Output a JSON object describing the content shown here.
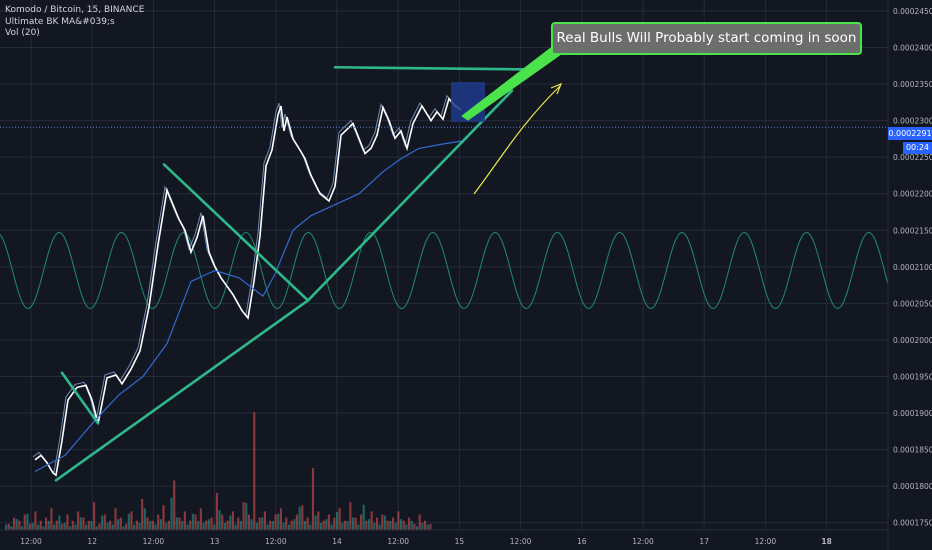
{
  "legend": {
    "symbol": "Komodo / Bitcoin, 15, BINANCE",
    "indicator": "Ultimate BK MA&#039;s",
    "volume": "Vol (20)"
  },
  "annotation": {
    "text": "Real Bulls Will Probably start coming in soon",
    "box_fill": "#6b6e6b",
    "box_border": "#4be34b",
    "arrow_color": "#e8e84a"
  },
  "current_price_label": "0.0002291",
  "countdown_label": "00:24",
  "colors": {
    "background": "#131722",
    "grid": "#262b38",
    "axis_text": "#b2b5be",
    "price_line": "#ffffff",
    "price_line_thin": "#8aa9d9",
    "ma_line": "#2f6bd1",
    "trendline": "#2eb88a",
    "oscillator": "#1e8a73",
    "volume_up": "#26a69a",
    "volume_down": "#ef5350",
    "marker_box": "#1e3a8a"
  },
  "chart_data": {
    "type": "line",
    "title": "Komodo / Bitcoin, 15, BINANCE",
    "ylim": [
      0.000174,
      0.0002465
    ],
    "y_ticks": [
      "0.0002450",
      "0.0002400",
      "0.0002350",
      "0.0002300",
      "0.0002250",
      "0.0002200",
      "0.0002150",
      "0.0002100",
      "0.0002050",
      "0.0002000",
      "0.0001950",
      "0.0001900",
      "0.0001850",
      "0.0001800",
      "0.0001750"
    ],
    "x_ticks": [
      "12:00",
      "12",
      "12:00",
      "13",
      "12:00",
      "14",
      "12:00",
      "15",
      "12:00",
      "16",
      "12:00",
      "17",
      "12:00",
      "18"
    ],
    "current_price": 0.0002291,
    "series": [
      {
        "kind": "price",
        "x": [
          0,
          0.1,
          0.2,
          0.3,
          0.35,
          0.45,
          0.55,
          0.7,
          0.85,
          0.95,
          1.0,
          1.05,
          1.2,
          1.35,
          1.45,
          1.6,
          1.75,
          1.9,
          2.05,
          2.2,
          2.4,
          2.5,
          2.6,
          2.7,
          2.8,
          2.9,
          3.0,
          3.1,
          3.3,
          3.45,
          3.55,
          3.65,
          3.75,
          3.85,
          3.95,
          4.05,
          4.1,
          4.15,
          4.2,
          4.3,
          4.4,
          4.5,
          4.6,
          4.75,
          4.9,
          5.0,
          5.1,
          5.3,
          5.5,
          5.6,
          5.7,
          5.8,
          5.9,
          6.0,
          6.1,
          6.2,
          6.3,
          6.45,
          6.6,
          6.7,
          6.8,
          6.9,
          7.0,
          7.1
        ],
        "values": [
          0.0001836,
          0.0001842,
          0.0001832,
          0.0001818,
          0.0001815,
          0.0001862,
          0.0001918,
          0.0001935,
          0.0001938,
          0.0001918,
          0.0001902,
          0.0001885,
          0.0001948,
          0.0001952,
          0.000194,
          0.000196,
          0.0001985,
          0.0002045,
          0.000213,
          0.0002205,
          0.0002165,
          0.000215,
          0.000212,
          0.000214,
          0.000217,
          0.000212,
          0.00021,
          0.0002085,
          0.0002062,
          0.000204,
          0.000203,
          0.000208,
          0.0002142,
          0.0002238,
          0.000226,
          0.0002308,
          0.000232,
          0.0002286,
          0.0002305,
          0.0002275,
          0.0002262,
          0.0002248,
          0.0002225,
          0.00022,
          0.000219,
          0.000221,
          0.000228,
          0.0002296,
          0.0002255,
          0.0002262,
          0.000228,
          0.0002318,
          0.00023,
          0.0002276,
          0.0002286,
          0.0002262,
          0.0002296,
          0.000232,
          0.00023,
          0.0002312,
          0.0002302,
          0.000233,
          0.000232,
          0.0002315
        ]
      },
      {
        "kind": "moving_average",
        "x": [
          0,
          0.5,
          1.0,
          1.4,
          1.8,
          2.2,
          2.6,
          3.0,
          3.4,
          3.8,
          4.0,
          4.3,
          4.6,
          5.0,
          5.4,
          5.8,
          6.1,
          6.4,
          6.8,
          7.1
        ],
        "values": [
          0.000182,
          0.0001842,
          0.000189,
          0.0001925,
          0.000195,
          0.0001995,
          0.000208,
          0.0002095,
          0.0002085,
          0.000206,
          0.000209,
          0.000215,
          0.000217,
          0.0002185,
          0.00022,
          0.000223,
          0.0002248,
          0.0002262,
          0.0002268,
          0.0002272
        ]
      }
    ],
    "trendlines": [
      {
        "x": [
          0.35,
          4.55
        ],
        "values": [
          0.0001808,
          0.0002054
        ]
      },
      {
        "x": [
          4.55,
          7.95
        ],
        "values": [
          0.0002054,
          0.0002341
        ]
      },
      {
        "x": [
          0.45,
          1.05
        ],
        "values": [
          0.0001955,
          0.0001886
        ]
      },
      {
        "x": [
          2.15,
          4.55
        ],
        "values": [
          0.000224,
          0.0002054
        ]
      },
      {
        "x": [
          5.0,
          8.25
        ],
        "values": [
          0.0002373,
          0.000237
        ]
      }
    ],
    "marker_box": {
      "x": [
        7.0,
        7.55
      ],
      "values": [
        0.000236,
        0.000233
      ]
    },
    "oscillator": {
      "center": 0.0002095,
      "amplitude": 5.2e-06,
      "period": 1.038,
      "phase": 0.3
    },
    "volume": {
      "up": [
        3,
        2,
        6,
        2,
        9,
        4,
        3,
        2,
        5,
        3,
        8,
        4,
        2,
        3,
        7,
        3,
        5,
        2,
        8,
        4,
        3,
        6,
        2,
        9,
        3,
        4,
        12,
        5,
        3,
        6,
        4,
        18,
        7,
        5,
        3,
        9,
        5,
        4,
        6,
        3,
        11,
        4,
        8,
        3,
        5,
        15,
        6,
        4,
        7,
        3,
        5,
        9,
        4,
        3,
        6,
        13,
        5,
        3,
        8,
        4,
        6,
        3,
        10,
        4,
        5,
        7,
        3,
        14,
        6,
        4,
        3,
        8,
        5,
        4,
        6,
        3,
        5,
        2,
        4,
        3
      ],
      "down": [
        2,
        4,
        3,
        5,
        2,
        6,
        3,
        4,
        7,
        3,
        2,
        5,
        3,
        6,
        4,
        3,
        9,
        2,
        5,
        3,
        7,
        4,
        2,
        6,
        3,
        10,
        4,
        3,
        5,
        8,
        3,
        16,
        4,
        6,
        3,
        5,
        7,
        3,
        4,
        12,
        5,
        3,
        6,
        4,
        9,
        5,
        38,
        4,
        6,
        3,
        5,
        7,
        4,
        3,
        5,
        8,
        4,
        20,
        6,
        3,
        5,
        4,
        7,
        3,
        9,
        4,
        5,
        3,
        6,
        4,
        5,
        3,
        4,
        6,
        3,
        4,
        2,
        5,
        3,
        2
      ]
    }
  }
}
